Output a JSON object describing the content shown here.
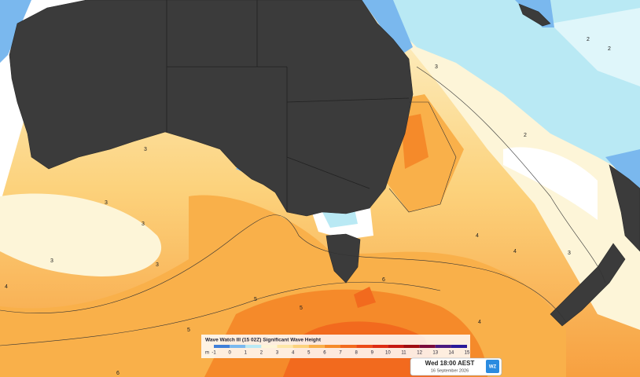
{
  "legend": {
    "title": "Wave Watch III (15 02Z) Significant Wave Height",
    "unit": "m",
    "ticks": [
      -1,
      0,
      1,
      2,
      3,
      4,
      5,
      6,
      7,
      8,
      9,
      10,
      11,
      12,
      13,
      14,
      15
    ],
    "colors": [
      "#3f7fd8",
      "#7ab8ee",
      "#b9e9f4",
      "#fdf5d8",
      "#fde7a8",
      "#fcd27c",
      "#f9b04a",
      "#f58a2a",
      "#f26a1e",
      "#ec4a17",
      "#de2c14",
      "#c61812",
      "#a00d10",
      "#7a0c3c",
      "#4a1a80",
      "#2a1a9a"
    ]
  },
  "timestamp": {
    "time": "Wed 18:00 AEST",
    "date": "16 September 2026",
    "logo": "WZ"
  },
  "contour_labels": [
    "3",
    "3",
    "3",
    "3",
    "4",
    "5",
    "5",
    "6",
    "4",
    "3",
    "2",
    "2",
    "3",
    "4",
    "5",
    "6",
    "3",
    "2",
    "4"
  ]
}
